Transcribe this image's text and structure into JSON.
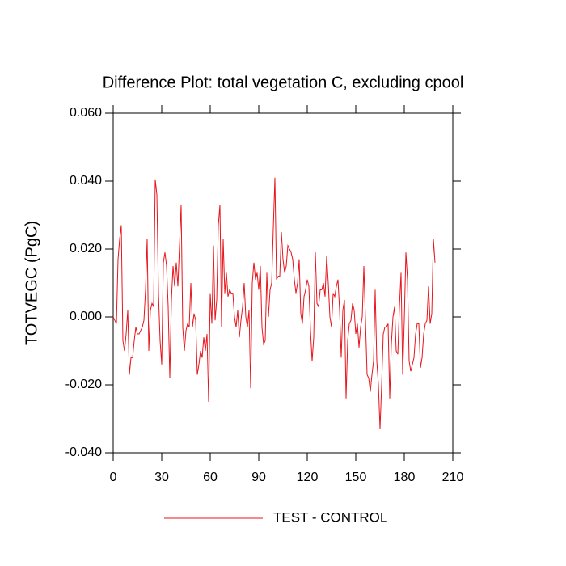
{
  "chart_data": {
    "type": "line",
    "title": "Difference Plot: total vegetation C, excluding cpool",
    "y_label": "TOTVEGC  (PgC)",
    "x": [
      0,
      1,
      2,
      3,
      4,
      5,
      6,
      7,
      8,
      9,
      10,
      11,
      12,
      13,
      14,
      15,
      16,
      17,
      18,
      19,
      20,
      21,
      22,
      23,
      24,
      25,
      26,
      27,
      28,
      29,
      30,
      31,
      32,
      33,
      34,
      35,
      36,
      37,
      38,
      39,
      40,
      41,
      42,
      43,
      44,
      45,
      46,
      47,
      48,
      49,
      50,
      51,
      52,
      53,
      54,
      55,
      56,
      57,
      58,
      59,
      60,
      61,
      62,
      63,
      64,
      65,
      66,
      67,
      68,
      69,
      70,
      71,
      72,
      73,
      74,
      75,
      76,
      77,
      78,
      79,
      80,
      81,
      82,
      83,
      84,
      85,
      86,
      87,
      88,
      89,
      90,
      91,
      92,
      93,
      94,
      95,
      96,
      97,
      98,
      99,
      100,
      101,
      102,
      103,
      104,
      105,
      106,
      107,
      108,
      109,
      110,
      111,
      112,
      113,
      114,
      115,
      116,
      117,
      118,
      119,
      120,
      121,
      122,
      123,
      124,
      125,
      126,
      127,
      128,
      129,
      130,
      131,
      132,
      133,
      134,
      135,
      136,
      137,
      138,
      139,
      140,
      141,
      142,
      143,
      144,
      145,
      146,
      147,
      148,
      149,
      150,
      151,
      152,
      153,
      154,
      155,
      156,
      157,
      158,
      159,
      160,
      161,
      162,
      163,
      164,
      165,
      166,
      167,
      168,
      169,
      170,
      171,
      172,
      173,
      174,
      175,
      176,
      177,
      178,
      179,
      180,
      181,
      182,
      183,
      184,
      185,
      186,
      187,
      188,
      189,
      190,
      191,
      192,
      193,
      194,
      195,
      196,
      197,
      198,
      199
    ],
    "series": [
      {
        "name": "TEST - CONTROL",
        "color": "#e8141c",
        "values": [
          0.0,
          -0.001,
          -0.002,
          0.017,
          0.023,
          0.027,
          -0.007,
          -0.01,
          -0.005,
          0.002,
          -0.017,
          -0.012,
          -0.012,
          -0.007,
          -0.003,
          -0.005,
          -0.005,
          -0.004,
          -0.003,
          -0.001,
          0.008,
          0.023,
          -0.01,
          0.002,
          0.004,
          0.003,
          0.0405,
          0.036,
          0.007,
          -0.007,
          -0.014,
          0.016,
          0.019,
          0.015,
          0.003,
          -0.018,
          0.005,
          0.015,
          0.009,
          0.016,
          0.009,
          0.021,
          0.033,
          -0.003,
          -0.01,
          -0.004,
          -0.002,
          -0.003,
          0.01,
          -0.003,
          0.001,
          -0.001,
          -0.017,
          -0.014,
          -0.01,
          -0.012,
          -0.006,
          -0.01,
          -0.005,
          -0.025,
          0.007,
          -0.002,
          0.021,
          -0.001,
          0.005,
          0.027,
          0.033,
          -0.003,
          0.023,
          0.007,
          0.013,
          0.006,
          0.008,
          0.007,
          0.007,
          0.0,
          -0.003,
          0.002,
          -0.006,
          -0.001,
          0.003,
          0.01,
          0.0,
          -0.003,
          0.002,
          -0.021,
          0.01,
          0.016,
          0.011,
          0.013,
          0.008,
          0.015,
          -0.003,
          -0.008,
          -0.007,
          0.013,
          0.0,
          0.008,
          0.01,
          0.026,
          0.041,
          0.011,
          0.012,
          0.012,
          0.025,
          0.017,
          0.013,
          0.015,
          0.021,
          0.02,
          0.019,
          0.017,
          0.011,
          0.007,
          0.01,
          0.017,
          0.001,
          -0.002,
          0.006,
          0.008,
          0.011,
          0.009,
          -0.004,
          -0.013,
          -0.006,
          0.019,
          0.004,
          0.003,
          0.008,
          0.008,
          0.01,
          0.006,
          0.018,
          0.01,
          0.0,
          -0.003,
          0.007,
          0.006,
          0.009,
          0.011,
          0.002,
          -0.012,
          0.002,
          0.005,
          -0.024,
          -0.007,
          -0.002,
          -0.001,
          0.004,
          0.002,
          -0.005,
          -0.002,
          -0.009,
          -0.003,
          0.0,
          0.015,
          -0.001,
          -0.017,
          -0.018,
          -0.022,
          -0.017,
          -0.013,
          0.008,
          -0.013,
          -0.02,
          -0.033,
          -0.02,
          -0.005,
          -0.003,
          -0.003,
          -0.002,
          -0.024,
          -0.008,
          0.0,
          0.003,
          -0.01,
          -0.011,
          0.003,
          0.013,
          -0.017,
          -0.001,
          0.019,
          0.011,
          -0.013,
          -0.016,
          -0.014,
          -0.012,
          -0.005,
          -0.002,
          -0.002,
          -0.015,
          -0.012,
          -0.005,
          -0.002,
          -0.001,
          0.009,
          -0.002,
          0.001,
          0.023,
          0.016
        ]
      }
    ],
    "xlim": [
      0,
      210
    ],
    "xticks": [
      0,
      30,
      60,
      90,
      120,
      150,
      180,
      210
    ],
    "ylim": [
      -0.04,
      0.06
    ],
    "yticks": [
      {
        "value": -0.04,
        "label": "-0.040"
      },
      {
        "value": -0.02,
        "label": "-0.020"
      },
      {
        "value": 0,
        "label": "0.000"
      },
      {
        "value": 0.02,
        "label": "0.020"
      },
      {
        "value": 0.04,
        "label": "0.040"
      },
      {
        "value": 0.06,
        "label": "0.060"
      }
    ],
    "legend": "bottom"
  }
}
